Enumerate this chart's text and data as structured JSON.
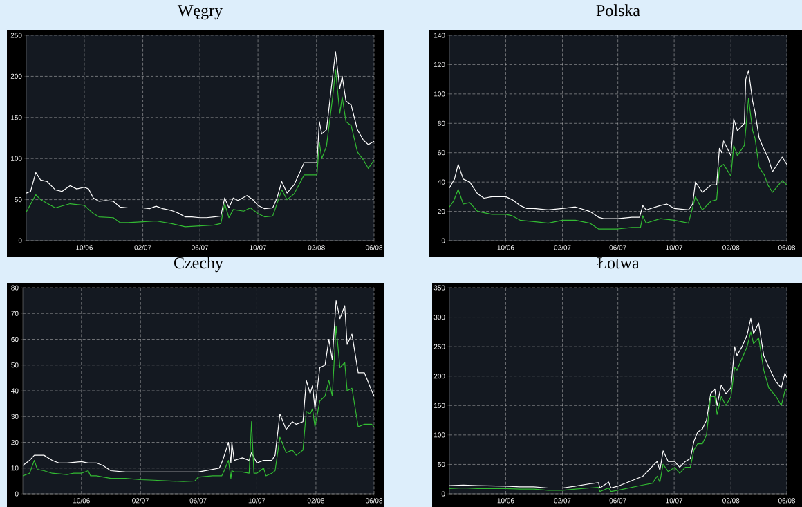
{
  "chart_data": [
    {
      "type": "line",
      "title": "Węgry",
      "xlim": [
        "2006-06-01",
        "2008-06-01"
      ],
      "ylim": [
        0,
        250
      ],
      "yticks": [
        0,
        50,
        100,
        150,
        200,
        250
      ],
      "xticks": [
        {
          "value": "2006-10-01",
          "label": "10/06"
        },
        {
          "value": "2007-02-01",
          "label": "02/07"
        },
        {
          "value": "2007-06-01",
          "label": "06/07"
        },
        {
          "value": "2007-10-01",
          "label": "10/07"
        },
        {
          "value": "2008-02-01",
          "label": "02/08"
        },
        {
          "value": "2008-06-01",
          "label": "06/08"
        }
      ],
      "grid": true,
      "series": [
        {
          "color": "#ffffff",
          "x": [
            "2006-06-01",
            "2006-06-10",
            "2006-06-21",
            "2006-07-01",
            "2006-07-15",
            "2006-08-01",
            "2006-08-15",
            "2006-09-01",
            "2006-09-15",
            "2006-10-01",
            "2006-10-10",
            "2006-10-20",
            "2006-11-01",
            "2006-11-15",
            "2006-12-01",
            "2006-12-15",
            "2007-01-01",
            "2007-01-15",
            "2007-02-01",
            "2007-02-15",
            "2007-03-01",
            "2007-03-15",
            "2007-04-01",
            "2007-04-15",
            "2007-05-01",
            "2007-05-15",
            "2007-06-01",
            "2007-06-15",
            "2007-07-01",
            "2007-07-15",
            "2007-07-23",
            "2007-08-01",
            "2007-08-10",
            "2007-08-20",
            "2007-09-08",
            "2007-09-20",
            "2007-10-01",
            "2007-10-15",
            "2007-11-01",
            "2007-11-10",
            "2007-11-20",
            "2007-12-01",
            "2007-12-16",
            "2008-01-06",
            "2008-02-02",
            "2008-02-07",
            "2008-02-12",
            "2008-02-22",
            "2008-03-06",
            "2008-03-12",
            "2008-03-21",
            "2008-03-26",
            "2008-04-03",
            "2008-04-14",
            "2008-04-27",
            "2008-05-10",
            "2008-05-20",
            "2008-06-01"
          ],
          "values": [
            58,
            60,
            83,
            74,
            72,
            62,
            60,
            67,
            63,
            65,
            63,
            52,
            48,
            49,
            48,
            41,
            40,
            40,
            40,
            39,
            42,
            39,
            37,
            34,
            29,
            29,
            28,
            28,
            29,
            30,
            52,
            40,
            52,
            49,
            55,
            50,
            43,
            39,
            40,
            52,
            72,
            58,
            68,
            95,
            95,
            145,
            130,
            135,
            200,
            230,
            185,
            200,
            170,
            165,
            135,
            122,
            117,
            121
          ]
        },
        {
          "color": "#33bb33",
          "x": [
            "2006-06-01",
            "2006-06-21",
            "2006-07-01",
            "2006-08-01",
            "2006-09-01",
            "2006-10-01",
            "2006-10-20",
            "2006-11-01",
            "2006-12-01",
            "2006-12-15",
            "2007-01-01",
            "2007-02-01",
            "2007-03-01",
            "2007-04-01",
            "2007-05-01",
            "2007-06-01",
            "2007-07-01",
            "2007-07-15",
            "2007-07-23",
            "2007-08-01",
            "2007-08-10",
            "2007-09-01",
            "2007-09-15",
            "2007-10-01",
            "2007-10-15",
            "2007-11-01",
            "2007-11-20",
            "2007-12-01",
            "2007-12-16",
            "2008-01-06",
            "2008-02-02",
            "2008-02-07",
            "2008-02-12",
            "2008-02-22",
            "2008-03-06",
            "2008-03-12",
            "2008-03-21",
            "2008-03-26",
            "2008-04-03",
            "2008-04-14",
            "2008-04-27",
            "2008-05-10",
            "2008-05-20",
            "2008-06-01"
          ],
          "values": [
            35,
            56,
            50,
            40,
            45,
            43,
            33,
            29,
            28,
            22,
            22,
            23,
            24,
            21,
            17,
            18,
            19,
            21,
            45,
            28,
            38,
            36,
            40,
            33,
            29,
            30,
            62,
            50,
            57,
            80,
            80,
            120,
            100,
            115,
            175,
            208,
            155,
            175,
            145,
            140,
            108,
            98,
            88,
            98
          ]
        }
      ]
    },
    {
      "type": "line",
      "title": "Polska",
      "xlim": [
        "2006-06-01",
        "2008-06-01"
      ],
      "ylim": [
        0,
        140
      ],
      "yticks": [
        0,
        20,
        40,
        60,
        80,
        100,
        120,
        140
      ],
      "xticks": [
        {
          "value": "2006-10-01",
          "label": "10/06"
        },
        {
          "value": "2007-02-01",
          "label": "02/07"
        },
        {
          "value": "2007-06-01",
          "label": "06/07"
        },
        {
          "value": "2007-10-01",
          "label": "10/07"
        },
        {
          "value": "2008-02-01",
          "label": "02/08"
        },
        {
          "value": "2008-06-01",
          "label": "06/08"
        }
      ],
      "grid": true,
      "series": [
        {
          "color": "#ffffff",
          "x": [
            "2006-06-01",
            "2006-06-12",
            "2006-06-20",
            "2006-07-01",
            "2006-07-15",
            "2006-08-01",
            "2006-08-15",
            "2006-09-01",
            "2006-10-01",
            "2006-10-15",
            "2006-11-01",
            "2006-11-15",
            "2006-12-01",
            "2007-01-01",
            "2007-02-01",
            "2007-03-01",
            "2007-04-01",
            "2007-04-20",
            "2007-05-01",
            "2007-06-01",
            "2007-07-01",
            "2007-07-18",
            "2007-07-25",
            "2007-08-01",
            "2007-09-01",
            "2007-09-15",
            "2007-10-01",
            "2007-11-01",
            "2007-11-10",
            "2007-11-16",
            "2007-12-01",
            "2007-12-20",
            "2008-01-01",
            "2008-01-07",
            "2008-01-12",
            "2008-01-16",
            "2008-02-01",
            "2008-02-07",
            "2008-02-15",
            "2008-03-01",
            "2008-03-04",
            "2008-03-10",
            "2008-03-19",
            "2008-03-24",
            "2008-04-02",
            "2008-04-13",
            "2008-04-21",
            "2008-05-01",
            "2008-05-22",
            "2008-06-01"
          ],
          "values": [
            36,
            42,
            52,
            42,
            40,
            32,
            29,
            30,
            30,
            28,
            24,
            22,
            22,
            21,
            22,
            23,
            20,
            16,
            15,
            15,
            16,
            16,
            24,
            21,
            24,
            25,
            22,
            21,
            25,
            40,
            33,
            38,
            38,
            63,
            60,
            68,
            58,
            83,
            75,
            80,
            110,
            116,
            95,
            88,
            70,
            62,
            57,
            47,
            57,
            52
          ]
        },
        {
          "color": "#33bb33",
          "x": [
            "2006-06-01",
            "2006-06-10",
            "2006-06-20",
            "2006-07-01",
            "2006-07-15",
            "2006-08-01",
            "2006-09-01",
            "2006-10-01",
            "2006-10-15",
            "2006-11-01",
            "2006-12-01",
            "2007-01-01",
            "2007-02-01",
            "2007-03-01",
            "2007-04-01",
            "2007-04-20",
            "2007-05-01",
            "2007-06-01",
            "2007-07-01",
            "2007-07-20",
            "2007-07-25",
            "2007-08-01",
            "2007-09-01",
            "2007-10-01",
            "2007-11-01",
            "2007-11-16",
            "2007-12-01",
            "2007-12-20",
            "2008-01-01",
            "2008-01-07",
            "2008-01-16",
            "2008-02-01",
            "2008-02-07",
            "2008-02-15",
            "2008-03-01",
            "2008-03-10",
            "2008-03-19",
            "2008-03-24",
            "2008-04-02",
            "2008-04-13",
            "2008-04-21",
            "2008-05-01",
            "2008-05-22",
            "2008-06-01"
          ],
          "values": [
            23,
            27,
            35,
            25,
            26,
            20,
            18,
            18,
            17,
            14,
            13,
            12,
            14,
            14,
            12,
            8,
            8,
            8,
            9,
            9,
            17,
            12,
            15,
            14,
            12,
            30,
            21,
            27,
            28,
            50,
            52,
            44,
            65,
            58,
            65,
            97,
            75,
            70,
            50,
            45,
            38,
            33,
            41,
            38
          ]
        }
      ]
    },
    {
      "type": "line",
      "title": "Czechy",
      "xlim": [
        "2006-06-01",
        "2008-06-01"
      ],
      "ylim": [
        0,
        80
      ],
      "yticks": [
        0,
        10,
        20,
        30,
        40,
        50,
        60,
        70,
        80
      ],
      "xticks": [
        {
          "value": "2006-10-01",
          "label": "10/06"
        },
        {
          "value": "2007-02-01",
          "label": "02/07"
        },
        {
          "value": "2007-06-01",
          "label": "06/07"
        },
        {
          "value": "2007-10-01",
          "label": "10/07"
        },
        {
          "value": "2008-02-01",
          "label": "02/08"
        },
        {
          "value": "2008-06-01",
          "label": "06/08"
        }
      ],
      "grid": true,
      "series": [
        {
          "color": "#ffffff",
          "x": [
            "2006-06-01",
            "2006-06-15",
            "2006-06-25",
            "2006-07-15",
            "2006-08-01",
            "2006-08-15",
            "2006-09-01",
            "2006-10-01",
            "2006-10-15",
            "2006-11-01",
            "2006-11-15",
            "2006-12-01",
            "2007-01-01",
            "2007-02-01",
            "2007-03-01",
            "2007-04-01",
            "2007-05-01",
            "2007-06-01",
            "2007-07-01",
            "2007-07-15",
            "2007-07-22",
            "2007-08-03",
            "2007-08-08",
            "2007-08-10",
            "2007-08-15",
            "2007-09-01",
            "2007-09-15",
            "2007-09-20",
            "2007-10-01",
            "2007-10-15",
            "2007-11-01",
            "2007-11-08",
            "2007-11-18",
            "2007-12-01",
            "2007-12-14",
            "2007-12-22",
            "2008-01-05",
            "2008-01-12",
            "2008-01-20",
            "2008-01-25",
            "2008-01-30",
            "2008-02-09",
            "2008-02-20",
            "2008-02-28",
            "2008-03-06",
            "2008-03-14",
            "2008-03-22",
            "2008-04-01",
            "2008-04-06",
            "2008-04-16",
            "2008-04-29",
            "2008-05-12",
            "2008-05-27",
            "2008-06-01"
          ],
          "values": [
            11,
            13,
            15,
            15,
            13,
            12,
            12,
            12.5,
            12,
            12,
            11,
            9,
            8.5,
            8.5,
            8.5,
            8.5,
            8.5,
            8.5,
            9.5,
            10,
            13,
            20,
            12,
            20,
            13,
            14,
            13,
            16,
            12,
            13,
            13,
            15,
            31,
            25,
            28,
            27,
            28,
            44,
            39,
            42,
            33,
            49,
            50,
            60,
            52,
            75,
            68,
            73,
            58,
            62,
            47,
            47,
            40,
            38
          ]
        },
        {
          "color": "#33bb33",
          "x": [
            "2006-06-01",
            "2006-06-15",
            "2006-06-25",
            "2006-07-01",
            "2006-07-15",
            "2006-08-01",
            "2006-09-01",
            "2006-09-15",
            "2006-10-01",
            "2006-10-15",
            "2006-10-20",
            "2006-11-01",
            "2006-12-01",
            "2007-01-01",
            "2007-02-01",
            "2007-03-01",
            "2007-04-01",
            "2007-05-01",
            "2007-05-25",
            "2007-06-01",
            "2007-07-01",
            "2007-07-20",
            "2007-07-25",
            "2007-08-03",
            "2007-08-08",
            "2007-08-10",
            "2007-08-15",
            "2007-09-01",
            "2007-09-15",
            "2007-09-20",
            "2007-09-25",
            "2007-10-01",
            "2007-10-15",
            "2007-10-20",
            "2007-11-01",
            "2007-11-08",
            "2007-11-18",
            "2007-12-01",
            "2007-12-14",
            "2007-12-22",
            "2008-01-05",
            "2008-01-12",
            "2008-01-20",
            "2008-01-25",
            "2008-01-30",
            "2008-02-09",
            "2008-02-20",
            "2008-02-28",
            "2008-03-06",
            "2008-03-14",
            "2008-03-22",
            "2008-04-01",
            "2008-04-06",
            "2008-04-16",
            "2008-04-29",
            "2008-05-12",
            "2008-05-27",
            "2008-06-01"
          ],
          "values": [
            7,
            8,
            13,
            9.5,
            9,
            8,
            7.5,
            8,
            8,
            9,
            7,
            7,
            6,
            6,
            5.5,
            5.3,
            5,
            4.8,
            5,
            6.5,
            7,
            7,
            9,
            13,
            6,
            9,
            8.5,
            8.5,
            8,
            28,
            8,
            8,
            10,
            7,
            8,
            9,
            22,
            16,
            17,
            15,
            17,
            32,
            31,
            33,
            26,
            36,
            38,
            44,
            38,
            65,
            49,
            51,
            40,
            41,
            26,
            27,
            27,
            26
          ]
        }
      ]
    },
    {
      "type": "line",
      "title": "Łotwa",
      "xlim": [
        "2006-06-01",
        "2008-06-01"
      ],
      "ylim": [
        0,
        350
      ],
      "yticks": [
        0,
        50,
        100,
        150,
        200,
        250,
        300,
        350
      ],
      "xticks": [
        {
          "value": "2006-10-01",
          "label": "10/06"
        },
        {
          "value": "2007-02-01",
          "label": "02/07"
        },
        {
          "value": "2007-06-01",
          "label": "06/07"
        },
        {
          "value": "2007-10-01",
          "label": "10/07"
        },
        {
          "value": "2008-02-01",
          "label": "02/08"
        },
        {
          "value": "2008-06-01",
          "label": "06/08"
        }
      ],
      "grid": true,
      "series": [
        {
          "color": "#ffffff",
          "x": [
            "2006-06-01",
            "2006-07-01",
            "2006-08-01",
            "2006-10-01",
            "2006-11-01",
            "2006-12-01",
            "2007-01-01",
            "2007-02-01",
            "2007-03-01",
            "2007-04-01",
            "2007-04-20",
            "2007-04-23",
            "2007-05-12",
            "2007-05-17",
            "2007-06-01",
            "2007-07-25",
            "2007-08-25",
            "2007-08-31",
            "2007-09-07",
            "2007-09-18",
            "2007-10-02",
            "2007-10-13",
            "2007-10-25",
            "2007-11-05",
            "2007-11-13",
            "2007-11-21",
            "2007-12-01",
            "2007-12-10",
            "2007-12-19",
            "2007-12-28",
            "2008-01-02",
            "2008-01-11",
            "2008-01-21",
            "2008-02-01",
            "2008-02-09",
            "2008-02-14",
            "2008-02-25",
            "2008-03-07",
            "2008-03-15",
            "2008-03-21",
            "2008-04-01",
            "2008-04-12",
            "2008-04-23",
            "2008-05-09",
            "2008-05-20",
            "2008-05-28",
            "2008-06-01"
          ],
          "values": [
            14,
            15,
            14,
            13,
            12,
            12,
            10,
            10,
            13,
            17,
            19,
            10,
            20,
            10,
            13,
            30,
            55,
            40,
            73,
            55,
            55,
            45,
            55,
            60,
            90,
            105,
            110,
            125,
            170,
            178,
            150,
            185,
            170,
            180,
            250,
            235,
            250,
            270,
            298,
            272,
            290,
            235,
            215,
            190,
            180,
            205,
            198
          ]
        },
        {
          "color": "#33bb33",
          "x": [
            "2006-06-01",
            "2006-07-01",
            "2006-08-01",
            "2006-10-01",
            "2006-11-01",
            "2006-12-01",
            "2007-01-01",
            "2007-02-01",
            "2007-03-01",
            "2007-04-01",
            "2007-04-20",
            "2007-04-23",
            "2007-05-12",
            "2007-05-17",
            "2007-06-01",
            "2007-07-25",
            "2007-08-15",
            "2007-08-25",
            "2007-08-31",
            "2007-09-07",
            "2007-09-18",
            "2007-10-02",
            "2007-10-13",
            "2007-10-25",
            "2007-11-05",
            "2007-11-13",
            "2007-11-21",
            "2007-12-01",
            "2007-12-10",
            "2007-12-19",
            "2007-12-28",
            "2008-01-02",
            "2008-01-11",
            "2008-01-21",
            "2008-02-01",
            "2008-02-09",
            "2008-02-14",
            "2008-02-25",
            "2008-03-07",
            "2008-03-15",
            "2008-03-21",
            "2008-04-01",
            "2008-04-12",
            "2008-04-23",
            "2008-05-09",
            "2008-05-20",
            "2008-05-28",
            "2008-06-01"
          ],
          "values": [
            9,
            10,
            9,
            9,
            8,
            8,
            6,
            6,
            8,
            10,
            11,
            4,
            10,
            4,
            6,
            15,
            18,
            30,
            20,
            50,
            38,
            45,
            35,
            45,
            45,
            75,
            85,
            85,
            100,
            165,
            165,
            135,
            165,
            150,
            165,
            215,
            210,
            230,
            250,
            275,
            255,
            265,
            210,
            180,
            165,
            150,
            175,
            178
          ]
        }
      ]
    }
  ]
}
